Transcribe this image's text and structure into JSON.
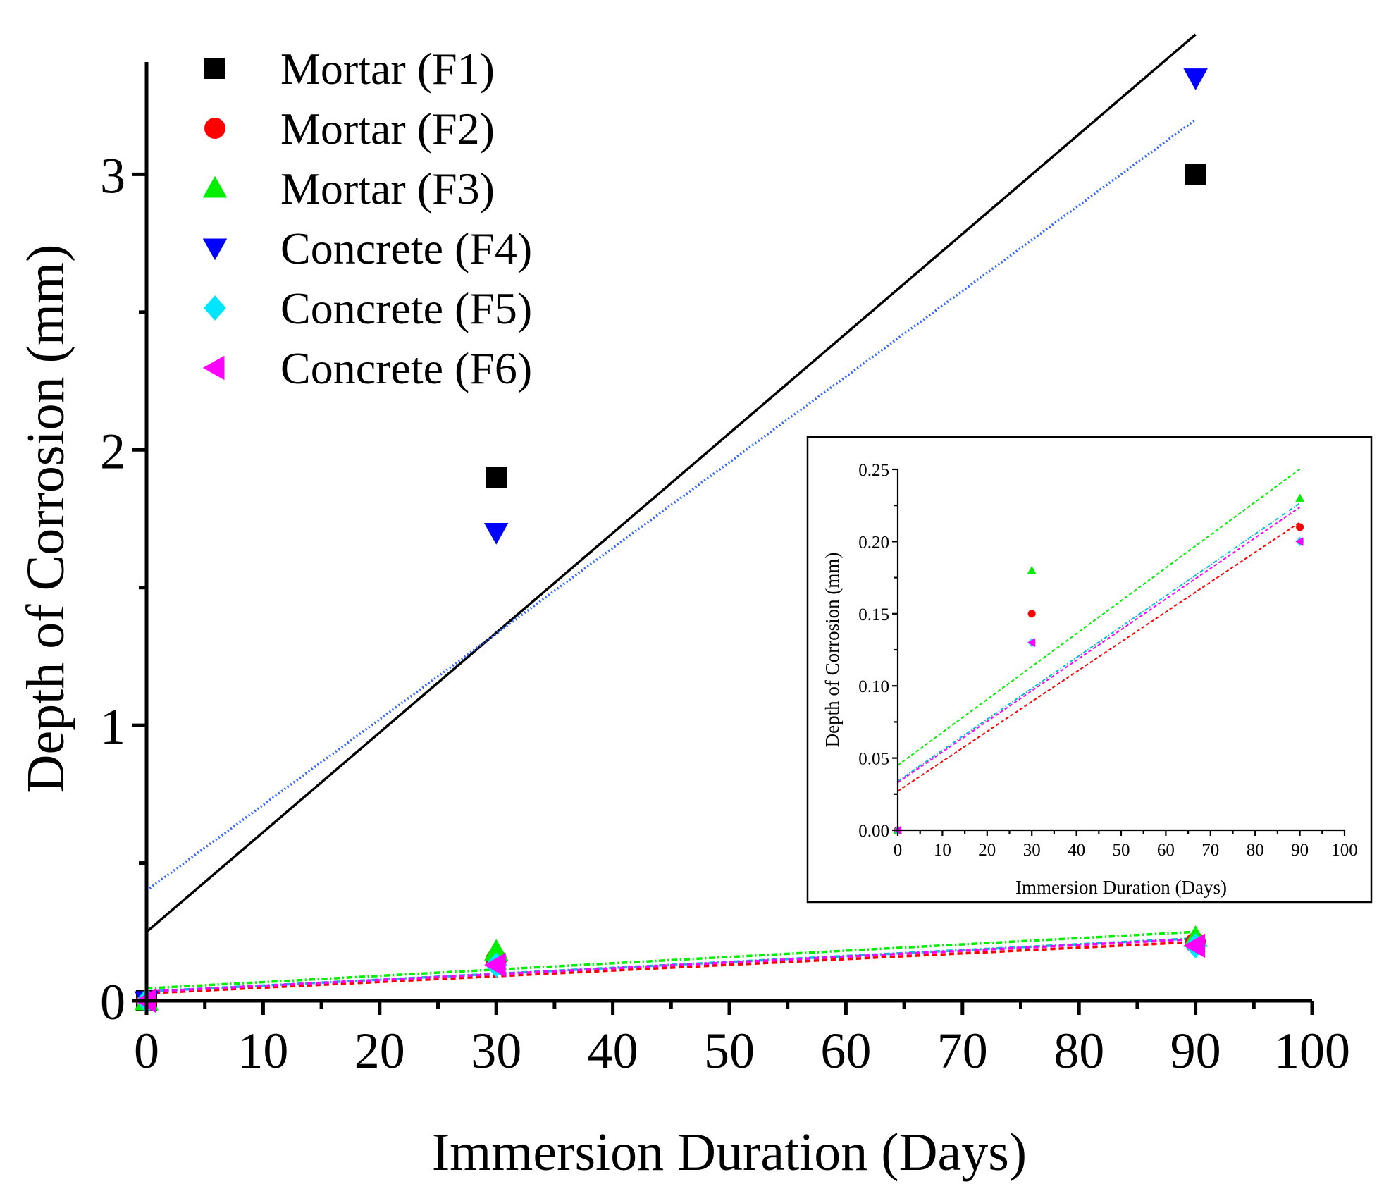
{
  "chart_data": [
    {
      "type": "scatter",
      "panel": "main",
      "xlabel": "Immersion Duration (Days)",
      "ylabel": "Depth of Corrosion (mm)",
      "xlim": [
        0,
        100
      ],
      "ylim": [
        0,
        3.5
      ],
      "xticks": [
        0,
        10,
        20,
        30,
        40,
        50,
        60,
        70,
        80,
        90,
        100
      ],
      "xtick_labels": [
        "0",
        "10",
        "20",
        "30",
        "40",
        "50",
        "60",
        "70",
        "80",
        "90",
        "100"
      ],
      "yticks": [
        0,
        1,
        2,
        3
      ],
      "ytick_labels": [
        "0",
        "1",
        "2",
        "3"
      ],
      "legend_position": "top-left",
      "series": [
        {
          "name": "Mortar (F1)",
          "marker": "square",
          "color": "#000000",
          "x": [
            0,
            30,
            90
          ],
          "y": [
            0,
            1.9,
            3.0
          ],
          "fit": {
            "intercept": 0.25,
            "slope": 0.0362,
            "style": "solid",
            "color": "#000000"
          }
        },
        {
          "name": "Mortar (F2)",
          "marker": "circle",
          "color": "#ff0000",
          "x": [
            0,
            30,
            90
          ],
          "y": [
            0,
            0.15,
            0.21
          ],
          "fit": {
            "intercept": 0.027,
            "slope": 0.00207,
            "style": "dashed",
            "color": "#ff0000"
          }
        },
        {
          "name": "Mortar (F3)",
          "marker": "triangle-up",
          "color": "#00ee00",
          "x": [
            0,
            30,
            90
          ],
          "y": [
            0,
            0.18,
            0.23
          ],
          "fit": {
            "intercept": 0.045,
            "slope": 0.00228,
            "style": "dashdot",
            "color": "#00ee00"
          }
        },
        {
          "name": "Concrete (F4)",
          "marker": "triangle-down",
          "color": "#0000ff",
          "x": [
            0,
            30,
            90
          ],
          "y": [
            0,
            1.7,
            3.35
          ],
          "fit": {
            "intercept": 0.4,
            "slope": 0.0311,
            "style": "dotted",
            "color": "#3366ff"
          }
        },
        {
          "name": "Concrete (F5)",
          "marker": "diamond",
          "color": "#00e5ff",
          "x": [
            0,
            30,
            90
          ],
          "y": [
            0,
            0.13,
            0.2
          ],
          "fit": {
            "intercept": 0.034,
            "slope": 0.00214,
            "style": "dashdot",
            "color": "#00bcd4"
          }
        },
        {
          "name": "Concrete (F6)",
          "marker": "triangle-left",
          "color": "#ff00ff",
          "x": [
            0,
            30,
            90
          ],
          "y": [
            0,
            0.13,
            0.2
          ],
          "fit": {
            "intercept": 0.033,
            "slope": 0.00212,
            "style": "dashed",
            "color": "#ff00ff"
          }
        }
      ]
    },
    {
      "type": "scatter",
      "panel": "inset",
      "xlabel": "Immersion Duration (Days)",
      "ylabel": "Depth of Corrosion (mm)",
      "xlim": [
        0,
        100
      ],
      "ylim": [
        0,
        0.25
      ],
      "xticks": [
        0,
        10,
        20,
        30,
        40,
        50,
        60,
        70,
        80,
        90,
        100
      ],
      "xtick_labels": [
        "0",
        "10",
        "20",
        "30",
        "40",
        "50",
        "60",
        "70",
        "80",
        "90",
        "100"
      ],
      "yticks": [
        0,
        0.05,
        0.1,
        0.15,
        0.2,
        0.25
      ],
      "ytick_labels": [
        "0.00",
        "0.05",
        "0.10",
        "0.15",
        "0.20",
        "0.25"
      ],
      "series": [
        {
          "name": "Mortar (F2)",
          "marker": "circle",
          "color": "#ff0000",
          "x": [
            0,
            30,
            90
          ],
          "y": [
            0,
            0.15,
            0.21
          ],
          "fit": {
            "intercept": 0.027,
            "slope": 0.00207,
            "style": "dashed",
            "color": "#ff0000"
          }
        },
        {
          "name": "Mortar (F3)",
          "marker": "triangle-up",
          "color": "#00ee00",
          "x": [
            0,
            30,
            90
          ],
          "y": [
            0,
            0.18,
            0.23
          ],
          "fit": {
            "intercept": 0.045,
            "slope": 0.00228,
            "style": "dashed",
            "color": "#00ee00"
          }
        },
        {
          "name": "Concrete (F5)",
          "marker": "diamond",
          "color": "#00e5ff",
          "x": [
            0,
            30,
            90
          ],
          "y": [
            0,
            0.13,
            0.2
          ],
          "fit": {
            "intercept": 0.034,
            "slope": 0.00214,
            "style": "dashdot",
            "color": "#00bcd4"
          }
        },
        {
          "name": "Concrete (F6)",
          "marker": "triangle-left",
          "color": "#ff00ff",
          "x": [
            0,
            30,
            90
          ],
          "y": [
            0,
            0.13,
            0.2
          ],
          "fit": {
            "intercept": 0.033,
            "slope": 0.00212,
            "style": "dashed",
            "color": "#ff00ff"
          }
        }
      ]
    }
  ]
}
